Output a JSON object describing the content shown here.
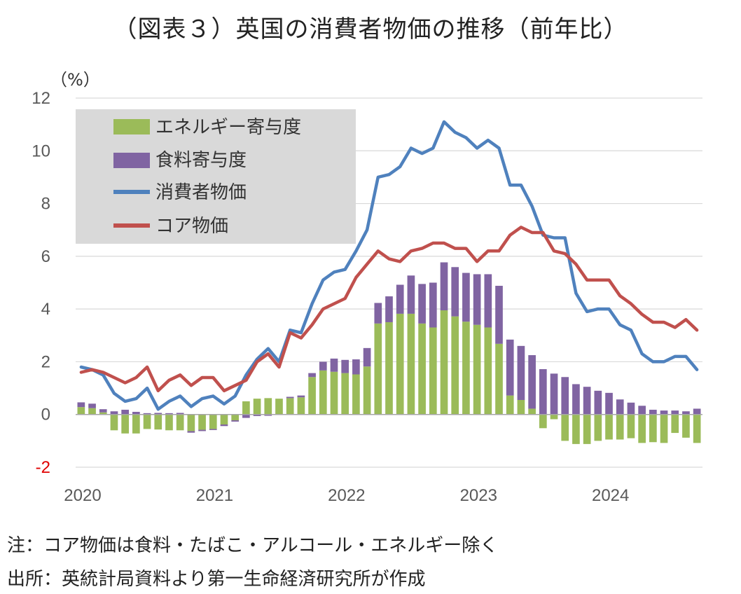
{
  "title": "（図表３）英国の消費者物価の推移（前年比）",
  "notes": [
    "注：コア物価は食料・たばこ・アルコール・エネルギー除く",
    "出所：英統計局資料より第一生命経済研究所が作成"
  ],
  "colors": {
    "energy": "#9bbb59",
    "food": "#8064a2",
    "cpi": "#4f81bd",
    "core": "#c0504d",
    "legend_bg": "#d9d9d9",
    "grid": "#d9d9d9",
    "negative_tick": "#e00000"
  },
  "chart_data": {
    "type": "bar+line",
    "y_unit": "（%）",
    "ylim": [
      -2,
      12
    ],
    "y_ticks": [
      -2,
      0,
      2,
      4,
      6,
      8,
      10,
      12
    ],
    "x_ticks": [
      "2020",
      "2021",
      "2022",
      "2023",
      "2024"
    ],
    "x_start": "2020-01",
    "x_end": "2024-09",
    "grid": true,
    "legend_position": "top-left",
    "legend": [
      "エネルギー寄与度",
      "食料寄与度",
      "消費者物価",
      "コア物価"
    ],
    "series": [
      {
        "name": "エネルギー寄与度",
        "kind": "bar",
        "values": [
          0.28,
          0.24,
          0.08,
          -0.6,
          -0.72,
          -0.72,
          -0.55,
          -0.57,
          -0.6,
          -0.6,
          -0.63,
          -0.58,
          -0.55,
          -0.38,
          -0.22,
          0.5,
          0.6,
          0.62,
          0.6,
          0.62,
          0.65,
          1.42,
          1.67,
          1.62,
          1.57,
          1.52,
          1.82,
          3.45,
          3.5,
          3.82,
          3.82,
          3.45,
          3.3,
          3.95,
          3.72,
          3.52,
          3.4,
          3.3,
          2.68,
          0.72,
          0.55,
          0.22,
          -0.52,
          -0.18,
          -1.0,
          -1.12,
          -1.12,
          -1.0,
          -0.95,
          -0.95,
          -0.9,
          -1.08,
          -1.05,
          -1.08,
          -0.7,
          -0.88,
          -1.08
        ]
      },
      {
        "name": "食料寄与度",
        "kind": "bar",
        "values": [
          0.18,
          0.17,
          0.12,
          0.12,
          0.18,
          0.1,
          0.05,
          0.06,
          0.05,
          0.06,
          -0.06,
          -0.05,
          -0.04,
          -0.06,
          -0.05,
          -0.13,
          -0.06,
          -0.05,
          0.0,
          0.05,
          0.07,
          0.15,
          0.33,
          0.5,
          0.5,
          0.57,
          0.7,
          0.78,
          0.98,
          1.1,
          1.45,
          1.5,
          1.7,
          1.82,
          1.87,
          1.85,
          1.92,
          2.02,
          2.2,
          2.12,
          2.05,
          2.03,
          1.72,
          1.55,
          1.42,
          1.15,
          1.05,
          0.9,
          0.82,
          0.57,
          0.45,
          0.33,
          0.18,
          0.15,
          0.15,
          0.12,
          0.22
        ]
      },
      {
        "name": "消費者物価",
        "kind": "line",
        "values": [
          1.8,
          1.7,
          1.5,
          0.8,
          0.5,
          0.6,
          1.0,
          0.2,
          0.5,
          0.7,
          0.3,
          0.6,
          0.7,
          0.4,
          0.7,
          1.5,
          2.1,
          2.5,
          2.0,
          3.2,
          3.1,
          4.2,
          5.1,
          5.4,
          5.5,
          6.2,
          7.0,
          9.0,
          9.1,
          9.4,
          10.1,
          9.9,
          10.1,
          11.1,
          10.7,
          10.5,
          10.1,
          10.4,
          10.1,
          8.7,
          8.7,
          7.9,
          6.8,
          6.7,
          6.7,
          4.6,
          3.9,
          4.0,
          4.0,
          3.4,
          3.2,
          2.3,
          2.0,
          2.0,
          2.2,
          2.2,
          1.7
        ]
      },
      {
        "name": "コア物価",
        "kind": "line",
        "values": [
          1.6,
          1.7,
          1.6,
          1.4,
          1.2,
          1.4,
          1.8,
          0.9,
          1.3,
          1.5,
          1.1,
          1.4,
          1.4,
          0.9,
          1.1,
          1.3,
          2.0,
          2.3,
          1.8,
          3.1,
          2.9,
          3.4,
          4.0,
          4.2,
          4.4,
          5.2,
          5.7,
          6.2,
          5.9,
          5.8,
          6.2,
          6.3,
          6.5,
          6.5,
          6.3,
          6.3,
          5.8,
          6.2,
          6.2,
          6.8,
          7.1,
          6.9,
          6.9,
          6.2,
          6.1,
          5.7,
          5.1,
          5.1,
          5.1,
          4.5,
          4.2,
          3.8,
          3.5,
          3.5,
          3.3,
          3.6,
          3.2
        ]
      }
    ]
  }
}
